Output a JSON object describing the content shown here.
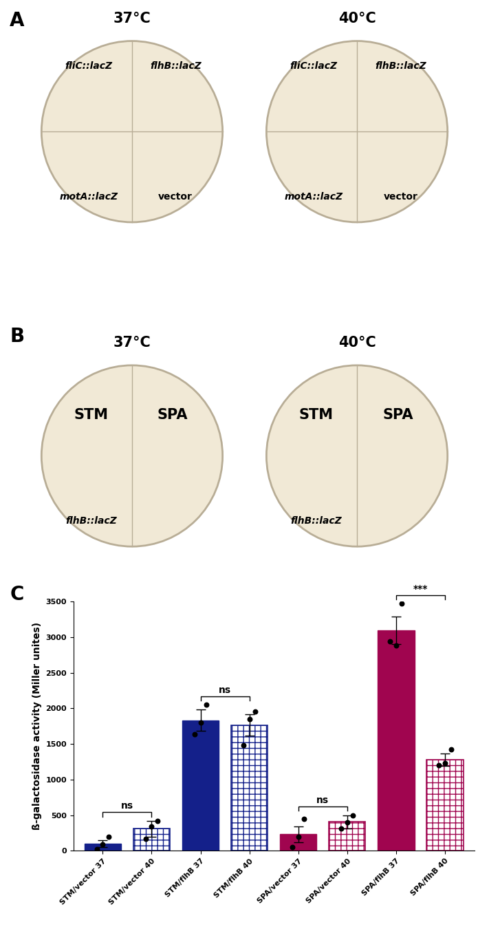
{
  "panel_a": {
    "letter": "A",
    "plates": [
      {
        "title": "37°C",
        "quadrants": [
          "fliC::lacZ",
          "flhB::lacZ",
          "motA::lacZ",
          "vector"
        ]
      },
      {
        "title": "40°C",
        "quadrants": [
          "fliC::lacZ",
          "flhB::lacZ",
          "motA::lacZ",
          "vector"
        ]
      }
    ]
  },
  "panel_b": {
    "letter": "B",
    "plates": [
      {
        "title": "37°C",
        "left": "STM",
        "right": "SPA",
        "bottom_left": "flhB::lacZ"
      },
      {
        "title": "40°C",
        "left": "STM",
        "right": "SPA",
        "bottom_left": "flhB::lacZ"
      }
    ]
  },
  "panel_c": {
    "letter": "C"
  },
  "chart_data": {
    "type": "bar",
    "y_label": "ß-galactosidase activity (Miller unites)",
    "categories": [
      "STM/vector 37",
      "STM/vector 40",
      "STM/flhB 37",
      "STM/flhB 40",
      "SPA/vector 37",
      "SPA/vector 40",
      "SPA/flhB 37",
      "SPA/flhB 40"
    ],
    "values": [
      100,
      310,
      1830,
      1765,
      230,
      405,
      3095,
      1280
    ],
    "errors": [
      50,
      110,
      150,
      150,
      110,
      90,
      190,
      85
    ],
    "points": [
      [
        20,
        85,
        195
      ],
      [
        170,
        340,
        420
      ],
      [
        1640,
        1800,
        2050
      ],
      [
        1480,
        1850,
        1960
      ],
      [
        50,
        200,
        450
      ],
      [
        310,
        400,
        500
      ],
      [
        2940,
        2880,
        3470
      ],
      [
        1200,
        1230,
        1420
      ]
    ],
    "colors": [
      "#14208a",
      "#14208a",
      "#14208a",
      "#14208a",
      "#a0054f",
      "#a0054f",
      "#a0054f",
      "#a0054f"
    ],
    "comparisons": [
      {
        "pair": [
          0,
          1
        ],
        "label": "ns"
      },
      {
        "pair": [
          2,
          3
        ],
        "label": "ns"
      },
      {
        "pair": [
          4,
          5
        ],
        "label": "ns"
      },
      {
        "pair": [
          6,
          7
        ],
        "label": "***"
      }
    ],
    "ylim": [
      0,
      3500
    ],
    "yticks": [
      0,
      500,
      1000,
      1500,
      2000,
      2500,
      3000,
      3500
    ],
    "grid": false
  }
}
